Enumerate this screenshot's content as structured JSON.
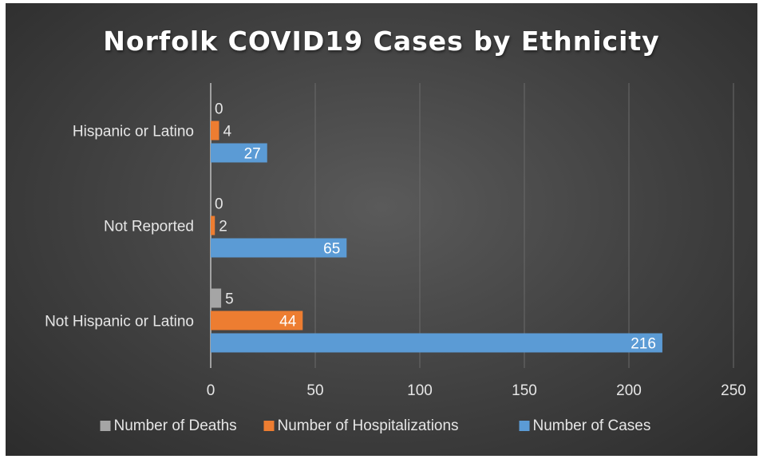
{
  "chart_data": {
    "type": "bar",
    "orientation": "horizontal",
    "title": "Norfolk COVID19 Cases by Ethnicity",
    "categories": [
      "Hispanic or Latino",
      "Not Reported",
      "Not Hispanic or Latino"
    ],
    "series": [
      {
        "name": "Number of Deaths",
        "color": "#a5a5a5",
        "values": [
          0,
          0,
          5
        ]
      },
      {
        "name": "Number of Hospitalizations",
        "color": "#ed7d31",
        "values": [
          4,
          2,
          44
        ]
      },
      {
        "name": "Number of Cases",
        "color": "#5b9bd5",
        "values": [
          27,
          65,
          216
        ]
      }
    ],
    "xlim": [
      0,
      250
    ],
    "xticks": [
      0,
      50,
      100,
      150,
      200,
      250
    ],
    "grid": "vertical",
    "legend": "bottom",
    "data_labels": true
  }
}
